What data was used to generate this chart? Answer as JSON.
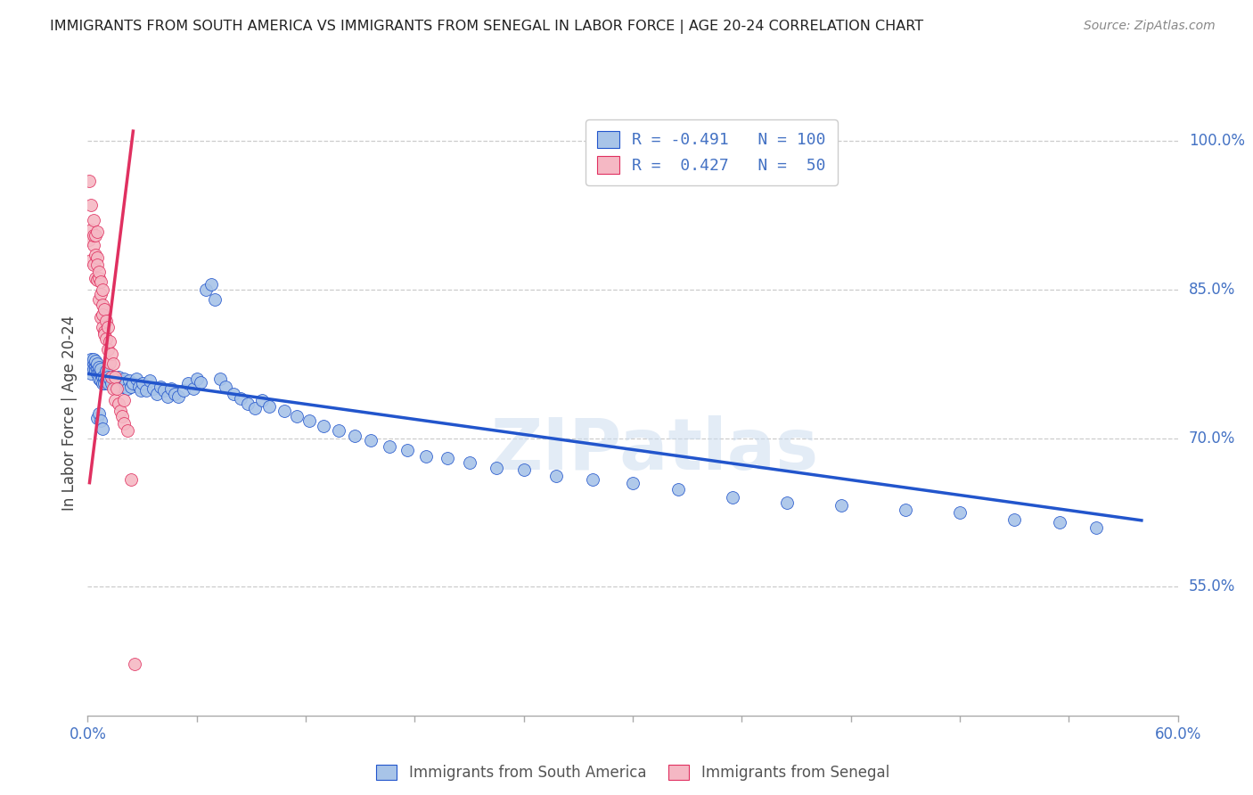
{
  "title": "IMMIGRANTS FROM SOUTH AMERICA VS IMMIGRANTS FROM SENEGAL IN LABOR FORCE | AGE 20-24 CORRELATION CHART",
  "source": "Source: ZipAtlas.com",
  "ylabel": "In Labor Force | Age 20-24",
  "right_yticks": [
    1.0,
    0.85,
    0.7,
    0.55
  ],
  "right_ytick_labels": [
    "100.0%",
    "85.0%",
    "70.0%",
    "55.0%"
  ],
  "xlim": [
    0.0,
    0.6
  ],
  "ylim": [
    0.42,
    1.03
  ],
  "blue_color": "#a8c4e8",
  "pink_color": "#f5b8c4",
  "blue_line_color": "#2255cc",
  "pink_line_color": "#e03060",
  "watermark": "ZIPatlas",
  "legend_blue_R": "R = -0.491",
  "legend_blue_N": "N = 100",
  "legend_pink_R": "R =  0.427",
  "legend_pink_N": "N =  50",
  "bottom_label_blue": "Immigrants from South America",
  "bottom_label_pink": "Immigrants from Senegal",
  "blue_trend_x0": 0.0,
  "blue_trend_y0": 0.765,
  "blue_trend_x1": 0.58,
  "blue_trend_y1": 0.617,
  "pink_trend_x0": 0.001,
  "pink_trend_y0": 0.655,
  "pink_trend_x1": 0.025,
  "pink_trend_y1": 1.01,
  "sa_x": [
    0.001,
    0.002,
    0.002,
    0.003,
    0.003,
    0.003,
    0.004,
    0.004,
    0.004,
    0.005,
    0.005,
    0.005,
    0.006,
    0.006,
    0.006,
    0.007,
    0.007,
    0.007,
    0.008,
    0.008,
    0.009,
    0.009,
    0.01,
    0.01,
    0.011,
    0.011,
    0.012,
    0.013,
    0.014,
    0.015,
    0.016,
    0.017,
    0.018,
    0.019,
    0.02,
    0.021,
    0.022,
    0.023,
    0.024,
    0.025,
    0.027,
    0.028,
    0.029,
    0.03,
    0.032,
    0.034,
    0.036,
    0.038,
    0.04,
    0.042,
    0.044,
    0.046,
    0.048,
    0.05,
    0.053,
    0.055,
    0.058,
    0.06,
    0.062,
    0.065,
    0.068,
    0.07,
    0.073,
    0.076,
    0.08,
    0.084,
    0.088,
    0.092,
    0.096,
    0.1,
    0.108,
    0.115,
    0.122,
    0.13,
    0.138,
    0.147,
    0.156,
    0.166,
    0.176,
    0.186,
    0.198,
    0.21,
    0.225,
    0.24,
    0.258,
    0.278,
    0.3,
    0.325,
    0.355,
    0.385,
    0.415,
    0.45,
    0.48,
    0.51,
    0.535,
    0.555,
    0.005,
    0.006,
    0.007,
    0.008
  ],
  "sa_y": [
    0.775,
    0.78,
    0.765,
    0.775,
    0.77,
    0.78,
    0.772,
    0.768,
    0.778,
    0.77,
    0.765,
    0.775,
    0.768,
    0.76,
    0.772,
    0.765,
    0.758,
    0.77,
    0.762,
    0.755,
    0.76,
    0.755,
    0.768,
    0.758,
    0.762,
    0.755,
    0.76,
    0.755,
    0.762,
    0.758,
    0.755,
    0.762,
    0.758,
    0.752,
    0.76,
    0.755,
    0.75,
    0.758,
    0.752,
    0.755,
    0.76,
    0.752,
    0.748,
    0.755,
    0.748,
    0.758,
    0.75,
    0.745,
    0.752,
    0.748,
    0.742,
    0.75,
    0.745,
    0.742,
    0.748,
    0.755,
    0.75,
    0.76,
    0.756,
    0.85,
    0.855,
    0.84,
    0.76,
    0.752,
    0.745,
    0.74,
    0.735,
    0.73,
    0.738,
    0.732,
    0.728,
    0.722,
    0.718,
    0.712,
    0.708,
    0.702,
    0.698,
    0.692,
    0.688,
    0.682,
    0.68,
    0.675,
    0.67,
    0.668,
    0.662,
    0.658,
    0.655,
    0.648,
    0.64,
    0.635,
    0.632,
    0.628,
    0.625,
    0.618,
    0.615,
    0.61,
    0.72,
    0.725,
    0.718,
    0.71
  ],
  "sn_x": [
    0.001,
    0.001,
    0.002,
    0.002,
    0.002,
    0.003,
    0.003,
    0.003,
    0.003,
    0.004,
    0.004,
    0.004,
    0.005,
    0.005,
    0.005,
    0.005,
    0.006,
    0.006,
    0.006,
    0.007,
    0.007,
    0.007,
    0.008,
    0.008,
    0.008,
    0.008,
    0.009,
    0.009,
    0.009,
    0.01,
    0.01,
    0.011,
    0.011,
    0.012,
    0.012,
    0.013,
    0.013,
    0.014,
    0.014,
    0.015,
    0.015,
    0.016,
    0.017,
    0.018,
    0.019,
    0.02,
    0.02,
    0.022,
    0.024,
    0.026
  ],
  "sn_y": [
    0.96,
    0.9,
    0.935,
    0.91,
    0.88,
    0.92,
    0.895,
    0.875,
    0.905,
    0.885,
    0.862,
    0.905,
    0.882,
    0.86,
    0.908,
    0.875,
    0.862,
    0.84,
    0.868,
    0.845,
    0.822,
    0.858,
    0.835,
    0.812,
    0.85,
    0.825,
    0.808,
    0.83,
    0.805,
    0.818,
    0.8,
    0.812,
    0.79,
    0.798,
    0.776,
    0.785,
    0.762,
    0.775,
    0.75,
    0.762,
    0.738,
    0.75,
    0.735,
    0.728,
    0.722,
    0.715,
    0.738,
    0.708,
    0.658,
    0.472
  ]
}
